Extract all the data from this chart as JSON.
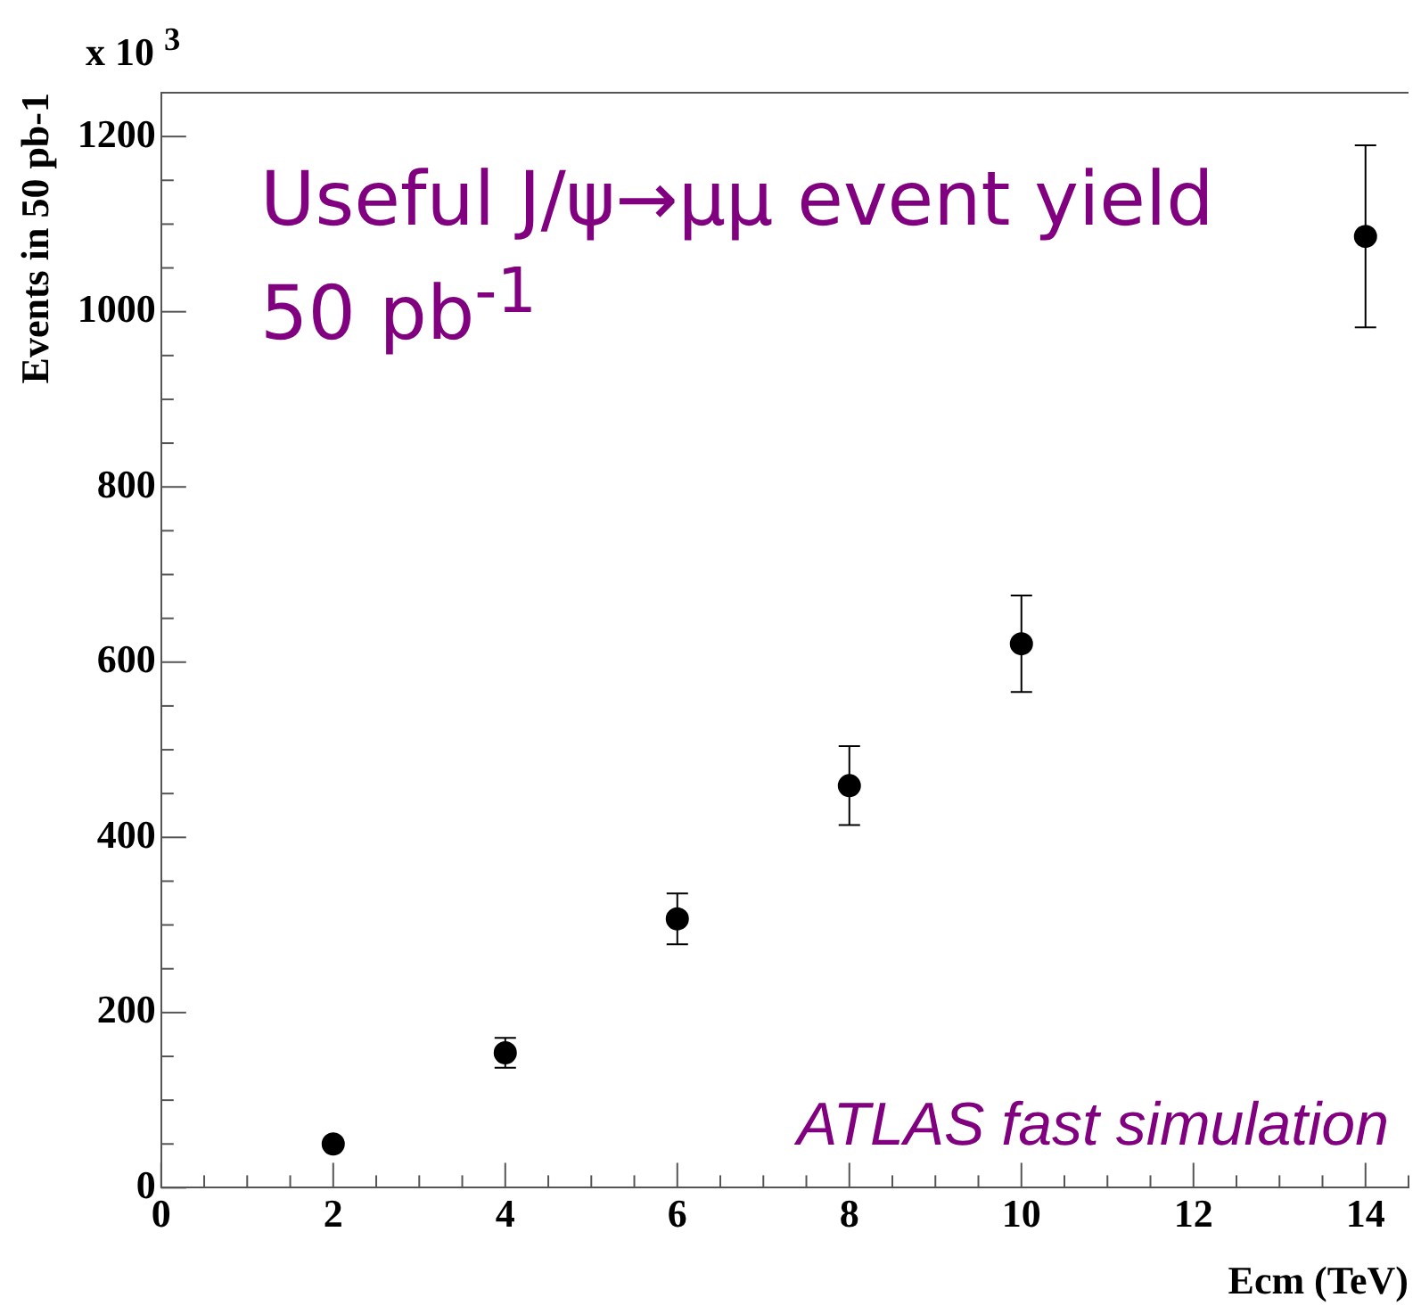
{
  "chart_data": {
    "type": "scatter",
    "title": "Useful J/ψ→μμ event yield 50 pb$^{-1}$",
    "xlabel": "Ecm (TeV)",
    "ylabel": "Events in 50 pb-1",
    "annotations": [
      "x 10 $^{3}$",
      "ATLAS fast simulation"
    ],
    "x": [
      2,
      4,
      6,
      8,
      10,
      14
    ],
    "series": [
      {
        "color": "#000000",
        "values": [
          50,
          154,
          307,
          459,
          621,
          1086
        ],
        "errors": [
          null,
          17,
          29,
          45,
          55,
          104
        ]
      }
    ],
    "xlim": [
      0,
      14.5
    ],
    "xticks": [
      0,
      {
        "value": 0.5,
        "label": null
      },
      {
        "value": 1,
        "label": null
      },
      {
        "value": 1.5,
        "label": null
      },
      2,
      {
        "value": 2.5,
        "label": null
      },
      {
        "value": 3,
        "label": null
      },
      {
        "value": 3.5,
        "label": null
      },
      4,
      {
        "value": 4.5,
        "label": null
      },
      {
        "value": 5,
        "label": null
      },
      {
        "value": 5.5,
        "label": null
      },
      6,
      {
        "value": 6.5,
        "label": null
      },
      {
        "value": 7,
        "label": null
      },
      {
        "value": 7.5,
        "label": null
      },
      8,
      {
        "value": 8.5,
        "label": null
      },
      {
        "value": 9,
        "label": null
      },
      {
        "value": 9.5,
        "label": null
      },
      10,
      {
        "value": 10.5,
        "label": null
      },
      {
        "value": 11,
        "label": null
      },
      {
        "value": 11.5,
        "label": null
      },
      12,
      {
        "value": 12.5,
        "label": null
      },
      {
        "value": 13,
        "label": null
      },
      {
        "value": 13.5,
        "label": null
      },
      14,
      {
        "value": 14.5,
        "label": null
      }
    ],
    "ylim": [
      0,
      1250
    ],
    "yticks": [
      0,
      {
        "value": 50,
        "label": null
      },
      {
        "value": 100,
        "label": null
      },
      {
        "value": 150,
        "label": null
      },
      200,
      {
        "value": 250,
        "label": null
      },
      {
        "value": 300,
        "label": null
      },
      {
        "value": 350,
        "label": null
      },
      400,
      {
        "value": 450,
        "label": null
      },
      {
        "value": 500,
        "label": null
      },
      {
        "value": 550,
        "label": null
      },
      600,
      {
        "value": 650,
        "label": null
      },
      {
        "value": 700,
        "label": null
      },
      {
        "value": 750,
        "label": null
      },
      800,
      {
        "value": 850,
        "label": null
      },
      {
        "value": 900,
        "label": null
      },
      {
        "value": 950,
        "label": null
      },
      1000,
      {
        "value": 1050,
        "label": null
      },
      {
        "value": 1100,
        "label": null
      },
      {
        "value": 1150,
        "label": null
      },
      1200,
      {
        "value": 1250,
        "label": null
      }
    ],
    "marker": "circle",
    "grid": false,
    "legend": false
  }
}
